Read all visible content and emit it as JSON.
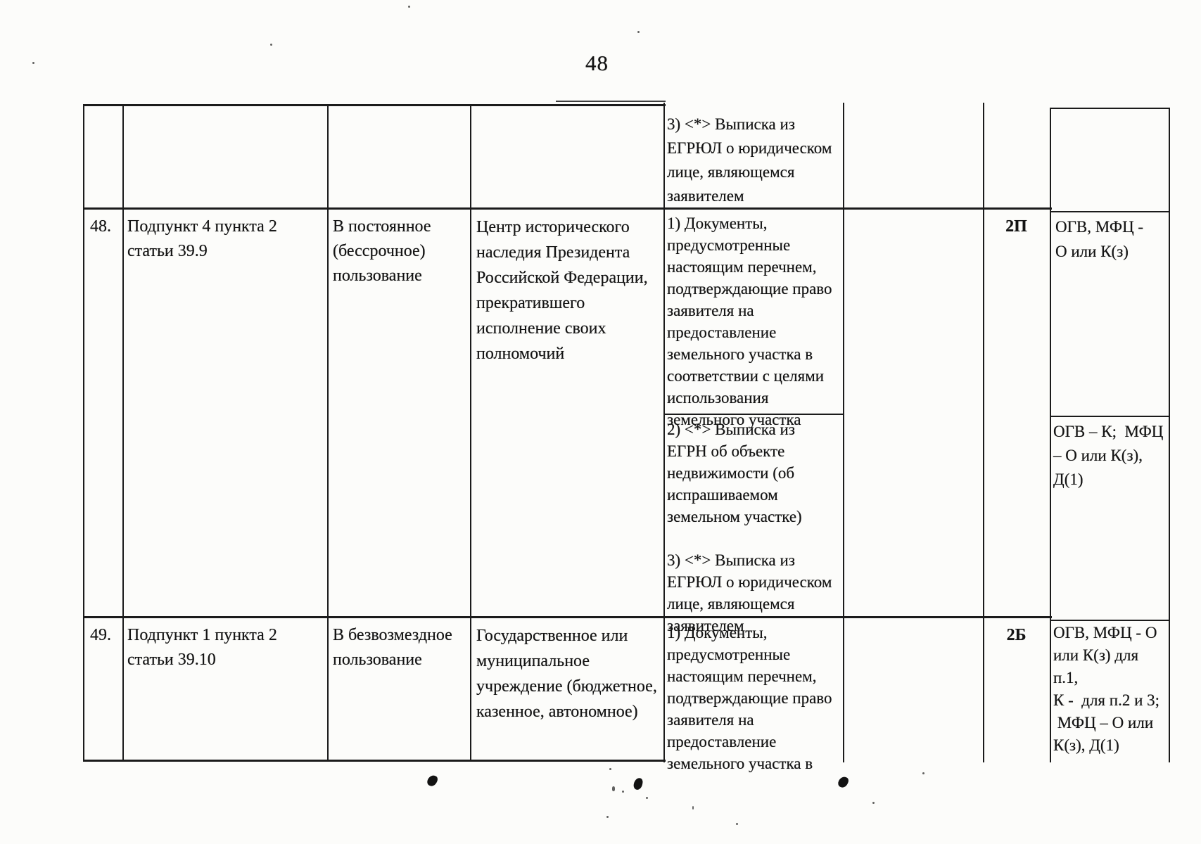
{
  "page": {
    "number": "48"
  },
  "table": {
    "rows": {
      "carryover": {
        "documents": "3) <*> Выписка из\nЕГРЮЛ о юридическом\nлице, являющемся\nзаявителем"
      },
      "r48": {
        "num": "48.",
        "legal_basis": "Подпункт 4 пункта 2\nстатьи 39.9",
        "use_type": "В постоянное\n(бессрочное)\nпользование",
        "applicant": "Центр исторического\nнаследия Президента\nРоссийской Федерации,\nпрекратившего\nисполнение своих\nполномочий",
        "documents_1": "1) Документы,\nпредусмотренные\nнастоящим перечнем,\nподтверждающие право\nзаявителя на\nпредоставление\nземельного участка в\nсоответствии с целями\nиспользования\nземельного участка",
        "documents_2": "2) <*> Выписка из\nЕГРН об объекте\nнедвижимости (об\nиспрашиваемом\nземельном участке)\n\n3) <*> Выписка из\nЕГРЮЛ о юридическом\nлице, являющемся\nзаявителем",
        "code": "2П",
        "notes_1": "ОГВ, МФЦ -\nО или К(з)",
        "notes_2": "ОГВ – К;  МФЦ\n– О или К(з),\nД(1)"
      },
      "r49": {
        "num": "49.",
        "legal_basis": "Подпункт 1 пункта 2\nстатьи 39.10",
        "use_type": "В безвозмездное\nпользование",
        "applicant": "Государственное или\nмуниципальное\nучреждение (бюджетное,\nказенное, автономное)",
        "documents_1": "1) Документы,\nпредусмотренные\nнастоящим перечнем,\nподтверждающие право\nзаявителя на\nпредоставление\nземельного участка в",
        "code": "2Б",
        "notes_1": "ОГВ, МФЦ - О\nили К(з) для\nп.1,\nК -  для п.2 и 3;\n МФЦ – О или\nК(з), Д(1)"
      }
    }
  }
}
